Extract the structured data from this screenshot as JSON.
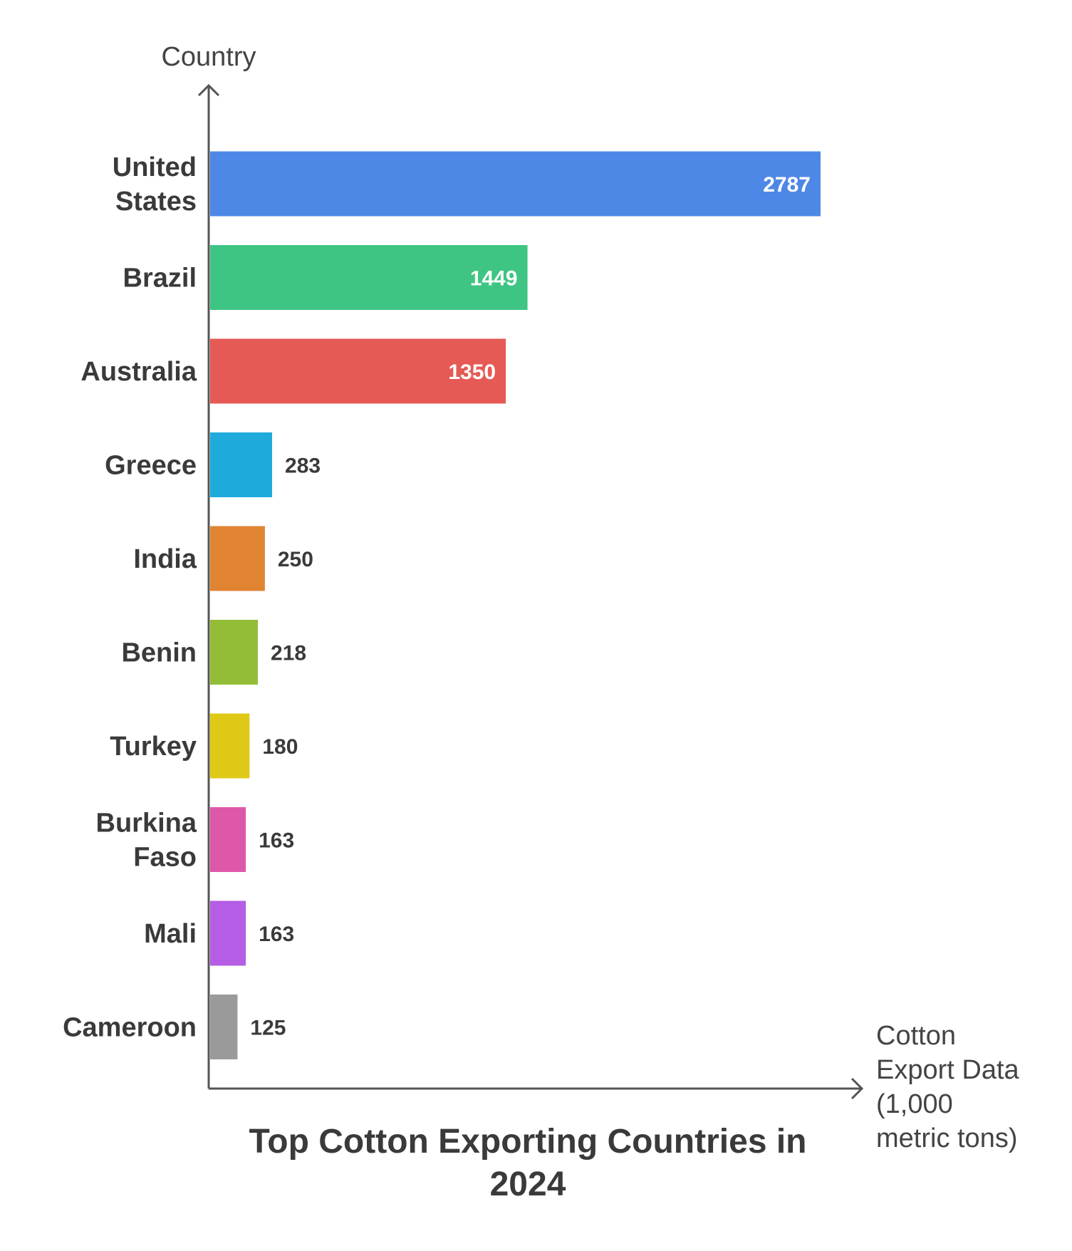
{
  "chart_data": {
    "type": "bar",
    "orientation": "horizontal",
    "title": [
      "Top Cotton Exporting Countries in",
      "2024"
    ],
    "ylabel": "Country",
    "xlabel": [
      "Cotton",
      "Export Data",
      "(1,000",
      "metric tons)"
    ],
    "categories": [
      [
        "United",
        "States"
      ],
      [
        "Brazil"
      ],
      [
        "Australia"
      ],
      [
        "Greece"
      ],
      [
        "India"
      ],
      [
        "Benin"
      ],
      [
        "Turkey"
      ],
      [
        "Burkina",
        "Faso"
      ],
      [
        "Mali"
      ],
      [
        "Cameroon"
      ]
    ],
    "values": [
      2787,
      1449,
      1350,
      283,
      250,
      218,
      180,
      163,
      163,
      125
    ],
    "colors": [
      "#4e88e6",
      "#3ec583",
      "#e55a55",
      "#1eabdb",
      "#e08431",
      "#93bd37",
      "#dfc916",
      "#de58a9",
      "#b55de4",
      "#9a9a9a"
    ],
    "legend": "none",
    "grid": false
  }
}
